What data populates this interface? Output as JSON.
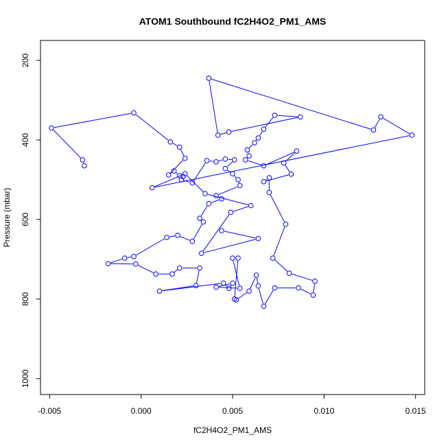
{
  "chart_data": {
    "type": "line",
    "title": "ATOM1 Southbound fC2H4O2_PM1_AMS",
    "xlabel": "fC2H4O2_PM1_AMS",
    "ylabel": "Pressure (mbar)",
    "xlim": [
      -0.0055,
      0.0155
    ],
    "ylim": [
      1040,
      150
    ],
    "y_reversed": true,
    "grid": false,
    "legend": "none",
    "x_ticks": [
      -0.005,
      0.0,
      0.005,
      0.01,
      0.015
    ],
    "x_tick_labels": [
      "-0.005",
      "0.000",
      "0.005",
      "0.010",
      "0.015"
    ],
    "y_ticks": [
      200,
      400,
      600,
      800,
      1000
    ],
    "y_tick_labels": [
      "200",
      "400",
      "600",
      "800",
      "1000"
    ],
    "series": [
      {
        "color": "#0000ff",
        "marker": "open-circle",
        "points": [
          [
            -0.0031,
            465
          ],
          [
            -0.0032,
            450
          ],
          [
            -0.0049,
            370
          ],
          [
            -0.0004,
            332
          ],
          [
            0.0016,
            405
          ],
          [
            0.0021,
            418
          ],
          [
            0.0024,
            446
          ],
          [
            0.0015,
            488
          ],
          [
            0.0018,
            478
          ],
          [
            0.0021,
            490
          ],
          [
            0.0023,
            492
          ],
          [
            0.0022,
            500
          ],
          [
            0.0028,
            508
          ],
          [
            0.0036,
            452
          ],
          [
            0.0041,
            455
          ],
          [
            0.0046,
            448
          ],
          [
            0.0051,
            450
          ],
          [
            0.0046,
            472
          ],
          [
            0.005,
            485
          ],
          [
            0.0053,
            500
          ],
          [
            0.0054,
            515
          ],
          [
            0.0041,
            540
          ],
          [
            0.0044,
            548
          ],
          [
            0.0037,
            560
          ],
          [
            0.0032,
            597
          ],
          [
            0.0034,
            606
          ],
          [
            0.0028,
            655
          ],
          [
            0.002,
            640
          ],
          [
            0.0014,
            645
          ],
          [
            -0.0004,
            693
          ],
          [
            -0.0009,
            697
          ],
          [
            -0.0018,
            711
          ],
          [
            -0.0003,
            712
          ],
          [
            0.0008,
            737
          ],
          [
            0.0017,
            737
          ],
          [
            0.0021,
            722
          ],
          [
            0.0032,
            722
          ],
          [
            0.003,
            766
          ],
          [
            0.001,
            780
          ],
          [
            0.0045,
            760
          ],
          [
            0.0048,
            773
          ],
          [
            0.005,
            760
          ],
          [
            0.0041,
            770
          ],
          [
            0.0054,
            773
          ],
          [
            0.005,
            697
          ],
          [
            0.0053,
            697
          ],
          [
            0.0051,
            800
          ],
          [
            0.0052,
            802
          ],
          [
            0.0059,
            780
          ],
          [
            0.0063,
            740
          ],
          [
            0.0064,
            767
          ],
          [
            0.0067,
            818
          ],
          [
            0.0073,
            772
          ],
          [
            0.0086,
            772
          ],
          [
            0.0094,
            790
          ],
          [
            0.0095,
            755
          ],
          [
            0.0081,
            735
          ],
          [
            0.0072,
            697
          ],
          [
            0.0079,
            612
          ],
          [
            0.007,
            532
          ],
          [
            0.007,
            495
          ],
          [
            0.0067,
            505
          ],
          [
            0.0082,
            486
          ],
          [
            0.0078,
            458
          ],
          [
            0.0085,
            428
          ],
          [
            0.0067,
            465
          ],
          [
            0.0057,
            450
          ],
          [
            0.0059,
            440
          ],
          [
            0.0058,
            425
          ],
          [
            0.0062,
            407
          ],
          [
            0.0064,
            395
          ],
          [
            0.0067,
            373
          ],
          [
            0.0073,
            338
          ],
          [
            0.0087,
            342
          ],
          [
            0.0048,
            380
          ],
          [
            0.0042,
            388
          ],
          [
            0.0037,
            245
          ],
          [
            0.0127,
            375
          ],
          [
            0.0131,
            342
          ],
          [
            0.0148,
            388
          ],
          [
            0.0006,
            520
          ],
          [
            0.0024,
            485
          ],
          [
            0.0035,
            535
          ],
          [
            0.006,
            565
          ],
          [
            0.0049,
            582
          ],
          [
            0.0033,
            685
          ],
          [
            0.0064,
            648
          ],
          [
            0.0044,
            628
          ]
        ]
      }
    ]
  }
}
